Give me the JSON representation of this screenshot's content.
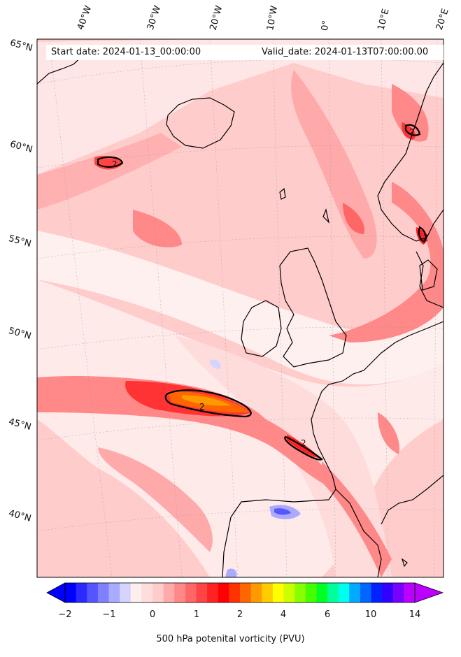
{
  "map": {
    "start_date": "Start date: 2024-01-13_00:00:00",
    "valid_date": "Valid_date: 2024-01-13T07:00:00.00",
    "longitude_labels": [
      "40°W",
      "30°W",
      "20°W",
      "10°W",
      "0°",
      "10°E",
      "20°E"
    ],
    "latitude_labels": [
      "65°N",
      "60°N",
      "55°N",
      "50°N",
      "45°N",
      "40°N"
    ],
    "contour_labels": [
      "2",
      "2",
      "2",
      "2",
      "2"
    ],
    "colorbar": {
      "label": "500 hPa potenital vorticity (PVU)",
      "ticks": [
        "−2",
        "−1",
        "0",
        "1",
        "2",
        "4",
        "6",
        "10",
        "14"
      ],
      "colors": [
        "#0000ff",
        "#2a2aff",
        "#5555ff",
        "#7f7fff",
        "#aaaaff",
        "#d4d4ff",
        "#ffeeee",
        "#ffdddd",
        "#ffcccc",
        "#ffaaaa",
        "#ff8888",
        "#ff6666",
        "#ff4444",
        "#ff2222",
        "#ff0000",
        "#ff3300",
        "#ff6600",
        "#ff9900",
        "#ffcc00",
        "#ffff00",
        "#ccff00",
        "#88ff00",
        "#44ff00",
        "#00ff22",
        "#00ff99",
        "#00ffee",
        "#00aaff",
        "#0066ff",
        "#0022ff",
        "#3300ff",
        "#7700ff",
        "#bb00ff"
      ]
    }
  }
}
